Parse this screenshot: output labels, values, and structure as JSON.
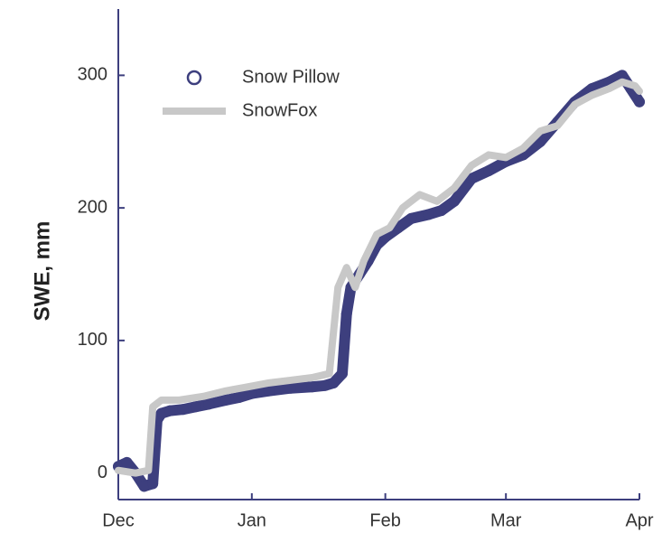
{
  "chart_data": {
    "type": "line",
    "y_label": "SWE, mm",
    "xlim": [
      0,
      121
    ],
    "xticks": [
      {
        "value": 0,
        "label": "Dec"
      },
      {
        "value": 31,
        "label": "Jan"
      },
      {
        "value": 62,
        "label": "Feb"
      },
      {
        "value": 90,
        "label": "Mar"
      },
      {
        "value": 121,
        "label": "Apr"
      }
    ],
    "ylim": [
      -20,
      350
    ],
    "yticks": [
      0,
      100,
      200,
      300
    ],
    "legend": "top-left",
    "series": [
      {
        "name": "Snow Pillow",
        "color": "#3d3f7e",
        "marker": "circle",
        "x": [
          0,
          2,
          4,
          6,
          8,
          9,
          10,
          12,
          15,
          18,
          21,
          25,
          28,
          31,
          35,
          40,
          45,
          48,
          50,
          52,
          53,
          54,
          56,
          58,
          60,
          62,
          65,
          68,
          72,
          75,
          78,
          82,
          86,
          90,
          94,
          98,
          102,
          106,
          110,
          114,
          117,
          119,
          121
        ],
        "values": [
          5,
          8,
          0,
          -10,
          -8,
          40,
          45,
          47,
          48,
          50,
          52,
          55,
          57,
          60,
          62,
          64,
          65,
          66,
          68,
          75,
          120,
          140,
          150,
          160,
          172,
          178,
          185,
          192,
          195,
          198,
          205,
          222,
          228,
          235,
          240,
          250,
          265,
          280,
          290,
          295,
          300,
          290,
          280
        ]
      },
      {
        "name": "SnowFox",
        "color": "#c8c8c8",
        "marker": "line",
        "x": [
          0,
          4,
          7,
          8,
          10,
          14,
          20,
          25,
          30,
          35,
          40,
          45,
          49,
          51,
          53,
          55,
          57,
          60,
          63,
          66,
          70,
          74,
          78,
          82,
          86,
          90,
          94,
          98,
          102,
          106,
          110,
          114,
          117,
          120,
          121
        ],
        "values": [
          2,
          0,
          2,
          50,
          55,
          55,
          58,
          62,
          65,
          68,
          70,
          72,
          75,
          140,
          155,
          140,
          160,
          180,
          185,
          200,
          210,
          205,
          215,
          232,
          240,
          238,
          245,
          258,
          262,
          278,
          285,
          290,
          295,
          292,
          288
        ]
      }
    ]
  }
}
